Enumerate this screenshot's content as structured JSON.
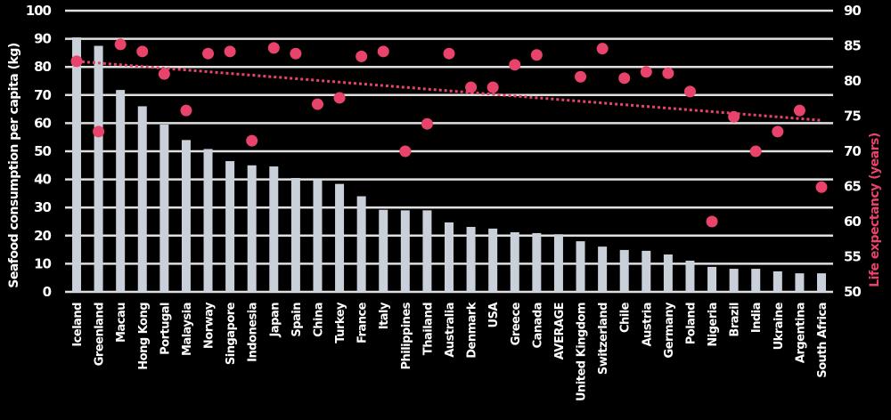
{
  "colors": {
    "background": "#000000",
    "bar": "#C9D0DA",
    "dot": "#E8436A",
    "trend": "#E8436A",
    "grid": "#E0E0E0",
    "text": "#FFFFFF",
    "right_title": "#E8436A"
  },
  "chart_data": {
    "type": "bar",
    "title": "",
    "xlabel": "",
    "ylabel": "Seafood consumption per capita (kg)",
    "y2label": "Life expectancy (years)",
    "ylim": [
      0,
      100
    ],
    "y2lim": [
      50,
      90
    ],
    "yticks": [
      0,
      10,
      20,
      30,
      40,
      50,
      60,
      70,
      80,
      90,
      100
    ],
    "y2ticks": [
      50,
      55,
      60,
      65,
      70,
      75,
      80,
      85,
      90
    ],
    "grid": true,
    "legend": "none",
    "categories": [
      "Iceland",
      "Greenland",
      "Macau",
      "Hong Kong",
      "Portugal",
      "Malaysia",
      "Norway",
      "Singapore",
      "Indonesia",
      "Japan",
      "Spain",
      "China",
      "Turkey",
      "France",
      "Italy",
      "Philippines",
      "Thailand",
      "Australia",
      "Denmark",
      "USA",
      "Greece",
      "Canada",
      "AVERAGE",
      "United Kingdom",
      "Switzerland",
      "Chile",
      "Austria",
      "Germany",
      "Poland",
      "Nigeria",
      "Brazil",
      "India",
      "Ukraine",
      "Argentina",
      "South Africa"
    ],
    "series": [
      {
        "name": "Seafood consumption per capita (kg)",
        "type": "bar",
        "axis": "left",
        "values": [
          90.5,
          87.5,
          71.8,
          66,
          59.5,
          54,
          50.8,
          46.5,
          45,
          44.6,
          40.5,
          39.7,
          38.4,
          34,
          29.2,
          29,
          29,
          24.7,
          23.1,
          22.5,
          21.2,
          20.9,
          20.5,
          18,
          16.1,
          14.9,
          14.6,
          13.3,
          11.1,
          8.9,
          8.2,
          8.2,
          7.3,
          6.6,
          6.6
        ]
      },
      {
        "name": "Life expectancy (years)",
        "type": "scatter",
        "axis": "right",
        "values": [
          82.8,
          72.8,
          85.2,
          84.2,
          81,
          75.8,
          83.9,
          84.2,
          71.5,
          84.7,
          83.9,
          76.7,
          77.6,
          83.5,
          84.2,
          70,
          73.9,
          83.9,
          79.1,
          79.1,
          82.3,
          83.7,
          null,
          80.6,
          84.6,
          80.4,
          81.3,
          81.1,
          78.5,
          60,
          74.9,
          70,
          72.8,
          75.8,
          64.9
        ]
      },
      {
        "name": "Life expectancy trend",
        "type": "line",
        "style": "dotted",
        "axis": "right",
        "start": 82.8,
        "end": 74.4
      }
    ]
  }
}
